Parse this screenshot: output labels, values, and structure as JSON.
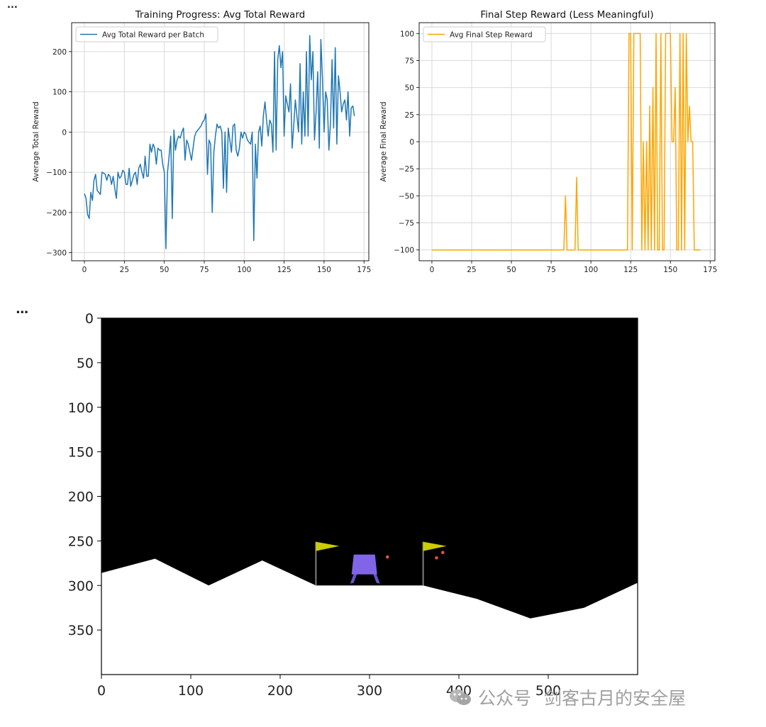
{
  "cell_markers": {
    "top": "...",
    "middle": "..."
  },
  "chart_data": [
    {
      "type": "line",
      "title": "Training Progress: Avg Total Reward",
      "xlabel": "",
      "ylabel": "Average Total Reward",
      "xlim": [
        -8,
        178
      ],
      "ylim": [
        -320,
        272
      ],
      "xticks": [
        0,
        25,
        50,
        75,
        100,
        125,
        150,
        175
      ],
      "yticks": [
        -300,
        -200,
        -100,
        0,
        100,
        200
      ],
      "grid": true,
      "legend_position": "top-left",
      "series": [
        {
          "name": "Avg Total Reward per Batch",
          "color": "#1f77b4",
          "x": [
            0,
            1,
            2,
            3,
            4,
            5,
            6,
            7,
            8,
            9,
            10,
            11,
            12,
            13,
            14,
            15,
            16,
            17,
            18,
            19,
            20,
            21,
            22,
            23,
            24,
            25,
            26,
            27,
            28,
            29,
            30,
            31,
            32,
            33,
            34,
            35,
            36,
            37,
            38,
            39,
            40,
            41,
            42,
            43,
            44,
            45,
            46,
            47,
            48,
            49,
            50,
            51,
            52,
            53,
            54,
            55,
            56,
            57,
            58,
            59,
            60,
            61,
            62,
            63,
            64,
            65,
            66,
            67,
            68,
            69,
            70,
            71,
            72,
            73,
            74,
            75,
            76,
            77,
            78,
            79,
            80,
            81,
            82,
            83,
            84,
            85,
            86,
            87,
            88,
            89,
            90,
            91,
            92,
            93,
            94,
            95,
            96,
            97,
            98,
            99,
            100,
            101,
            102,
            103,
            104,
            105,
            106,
            107,
            108,
            109,
            110,
            111,
            112,
            113,
            114,
            115,
            116,
            117,
            118,
            119,
            120,
            121,
            122,
            123,
            124,
            125,
            126,
            127,
            128,
            129,
            130,
            131,
            132,
            133,
            134,
            135,
            136,
            137,
            138,
            139,
            140,
            141,
            142,
            143,
            144,
            145,
            146,
            147,
            148,
            149,
            150,
            151,
            152,
            153,
            154,
            155,
            156,
            157,
            158,
            159,
            160,
            161,
            162,
            163,
            164,
            165,
            166,
            167,
            168,
            169
          ],
          "values": [
            -153,
            -165,
            -205,
            -215,
            -150,
            -170,
            -120,
            -105,
            -145,
            -150,
            -155,
            -100,
            -102,
            -105,
            -120,
            -105,
            -110,
            -130,
            -110,
            -140,
            -165,
            -100,
            -115,
            -110,
            -95,
            -100,
            -130,
            -130,
            -90,
            -135,
            -120,
            -105,
            -100,
            -130,
            -90,
            -80,
            -100,
            -115,
            -60,
            -110,
            -110,
            -30,
            -50,
            -30,
            -40,
            -80,
            -40,
            -45,
            -45,
            -80,
            -100,
            -290,
            -100,
            -60,
            -10,
            -215,
            5,
            -45,
            -20,
            -10,
            -15,
            0,
            10,
            -70,
            -20,
            -30,
            -50,
            -70,
            -40,
            -10,
            0,
            5,
            10,
            15,
            25,
            30,
            45,
            -105,
            -20,
            -30,
            -200,
            -50,
            -10,
            20,
            10,
            15,
            0,
            -140,
            0,
            -150,
            10,
            -20,
            -50,
            15,
            20,
            -45,
            -60,
            -40,
            0,
            -15,
            0,
            -5,
            -20,
            -25,
            -30,
            0,
            -270,
            -30,
            -115,
            0,
            15,
            -35,
            40,
            75,
            30,
            -10,
            30,
            20,
            -50,
            200,
            -45,
            180,
            215,
            160,
            200,
            -10,
            90,
            70,
            50,
            120,
            -40,
            15,
            80,
            40,
            0,
            170,
            -30,
            100,
            -10,
            200,
            -10,
            240,
            130,
            200,
            -20,
            50,
            150,
            -40,
            230,
            130,
            0,
            100,
            80,
            -45,
            20,
            180,
            10,
            210,
            -30,
            140,
            100,
            50,
            70,
            80,
            30,
            100,
            -10,
            60,
            65,
            40
          ]
        }
      ]
    },
    {
      "type": "line",
      "title": "Final Step Reward (Less Meaningful)",
      "xlabel": "",
      "ylabel": "Average Final Reward",
      "xlim": [
        -8,
        178
      ],
      "ylim": [
        -110,
        110
      ],
      "xticks": [
        0,
        25,
        50,
        75,
        100,
        125,
        150,
        175
      ],
      "yticks": [
        -100,
        -75,
        -50,
        -25,
        0,
        25,
        50,
        75,
        100
      ],
      "grid": true,
      "legend_position": "top-left",
      "series": [
        {
          "name": "Avg Final Step Reward",
          "color": "#ffa500",
          "x": [
            0,
            83,
            84,
            85,
            90,
            91,
            92,
            122,
            123,
            124,
            125,
            126,
            127,
            128,
            129,
            130,
            131,
            132,
            133,
            134,
            135,
            136,
            137,
            138,
            139,
            140,
            141,
            142,
            143,
            144,
            145,
            146,
            147,
            148,
            149,
            150,
            151,
            152,
            153,
            154,
            155,
            156,
            157,
            158,
            159,
            160,
            161,
            162,
            163,
            164,
            165,
            169
          ],
          "values": [
            -100,
            -100,
            -50,
            -100,
            -100,
            -33,
            -100,
            -100,
            -100,
            100,
            100,
            -100,
            100,
            100,
            100,
            100,
            100,
            -100,
            0,
            -100,
            0,
            -100,
            33,
            -100,
            50,
            -100,
            100,
            -100,
            -100,
            100,
            -100,
            -100,
            100,
            100,
            100,
            100,
            0,
            0,
            50,
            -100,
            -100,
            100,
            -100,
            100,
            -100,
            100,
            0,
            33,
            0,
            0,
            -100,
            -100
          ]
        }
      ]
    },
    {
      "type": "image-plot",
      "title": "",
      "xlabel": "",
      "ylabel": "",
      "xlim": [
        0,
        600
      ],
      "ylim": [
        400,
        0
      ],
      "xticks": [
        0,
        100,
        200,
        300,
        400,
        500
      ],
      "yticks": [
        0,
        50,
        100,
        150,
        200,
        250,
        300,
        350
      ],
      "grid": false,
      "scene": {
        "sky_color": "#000000",
        "ground_color": "#ffffff",
        "terrain": [
          [
            0,
            286
          ],
          [
            60,
            270
          ],
          [
            120,
            300
          ],
          [
            180,
            272
          ],
          [
            240,
            300
          ],
          [
            360,
            300
          ],
          [
            420,
            315
          ],
          [
            480,
            337
          ],
          [
            540,
            325
          ],
          [
            600,
            297
          ]
        ],
        "flags": [
          {
            "x": 240,
            "pole_top": 251
          },
          {
            "x": 360,
            "pole_top": 251
          }
        ],
        "flag_color": "#cccc00",
        "pole_color": "#808080",
        "lander": {
          "x": 295,
          "y": 278
        },
        "lander_color": "#8066e6",
        "leg_color": "#6652cc",
        "particles": [
          {
            "x": 320,
            "y": 268
          },
          {
            "x": 375,
            "y": 269
          },
          {
            "x": 382,
            "y": 263
          }
        ],
        "particle_color": "#e05050"
      }
    }
  ],
  "watermark": {
    "source": "公众号",
    "name": "剑客古月的安全屋"
  }
}
